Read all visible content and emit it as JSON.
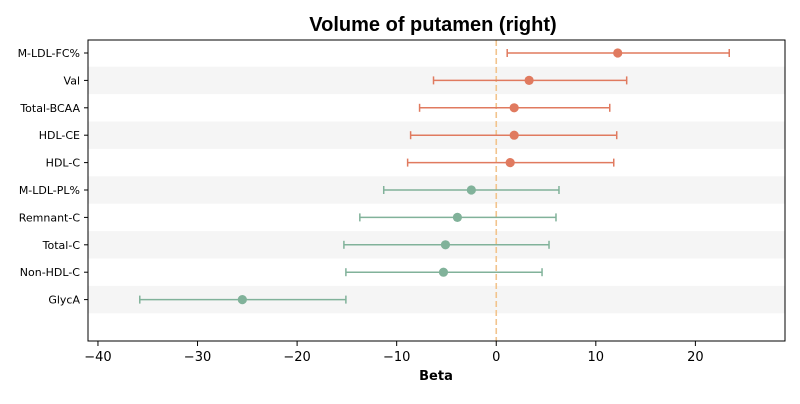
{
  "chart_data": {
    "type": "forest",
    "title": "Volume of putamen (right)",
    "xlabel": "Beta",
    "ylabel": "",
    "xlim": [
      -41,
      29
    ],
    "xticks": [
      -40,
      -30,
      -20,
      -10,
      0,
      10,
      20
    ],
    "xtick_labels": [
      "−40",
      "−30",
      "−20",
      "−10",
      "0",
      "10",
      "20"
    ],
    "reference_line": 0,
    "colors": {
      "positive": "#e07a5f",
      "negative": "#81b29a",
      "reference": "#f2c48d",
      "band": "#f5f5f5"
    },
    "rows": [
      {
        "label": "M-LDL-FC%",
        "beta": 12.2,
        "lower": 1.1,
        "upper": 23.4,
        "color": "#e07a5f"
      },
      {
        "label": "Val",
        "beta": 3.3,
        "lower": -6.3,
        "upper": 13.1,
        "color": "#e07a5f"
      },
      {
        "label": "Total-BCAA",
        "beta": 1.8,
        "lower": -7.7,
        "upper": 11.4,
        "color": "#e07a5f"
      },
      {
        "label": "HDL-CE",
        "beta": 1.8,
        "lower": -8.6,
        "upper": 12.1,
        "color": "#e07a5f"
      },
      {
        "label": "HDL-C",
        "beta": 1.4,
        "lower": -8.9,
        "upper": 11.8,
        "color": "#e07a5f"
      },
      {
        "label": "M-LDL-PL%",
        "beta": -2.5,
        "lower": -11.3,
        "upper": 6.3,
        "color": "#81b29a"
      },
      {
        "label": "Remnant-C",
        "beta": -3.9,
        "lower": -13.7,
        "upper": 6.0,
        "color": "#81b29a"
      },
      {
        "label": "Total-C",
        "beta": -5.1,
        "lower": -15.3,
        "upper": 5.3,
        "color": "#81b29a"
      },
      {
        "label": "Non-HDL-C",
        "beta": -5.3,
        "lower": -15.1,
        "upper": 4.6,
        "color": "#81b29a"
      },
      {
        "label": "GlycA",
        "beta": -25.5,
        "lower": -35.8,
        "upper": -15.1,
        "color": "#81b29a"
      }
    ]
  }
}
